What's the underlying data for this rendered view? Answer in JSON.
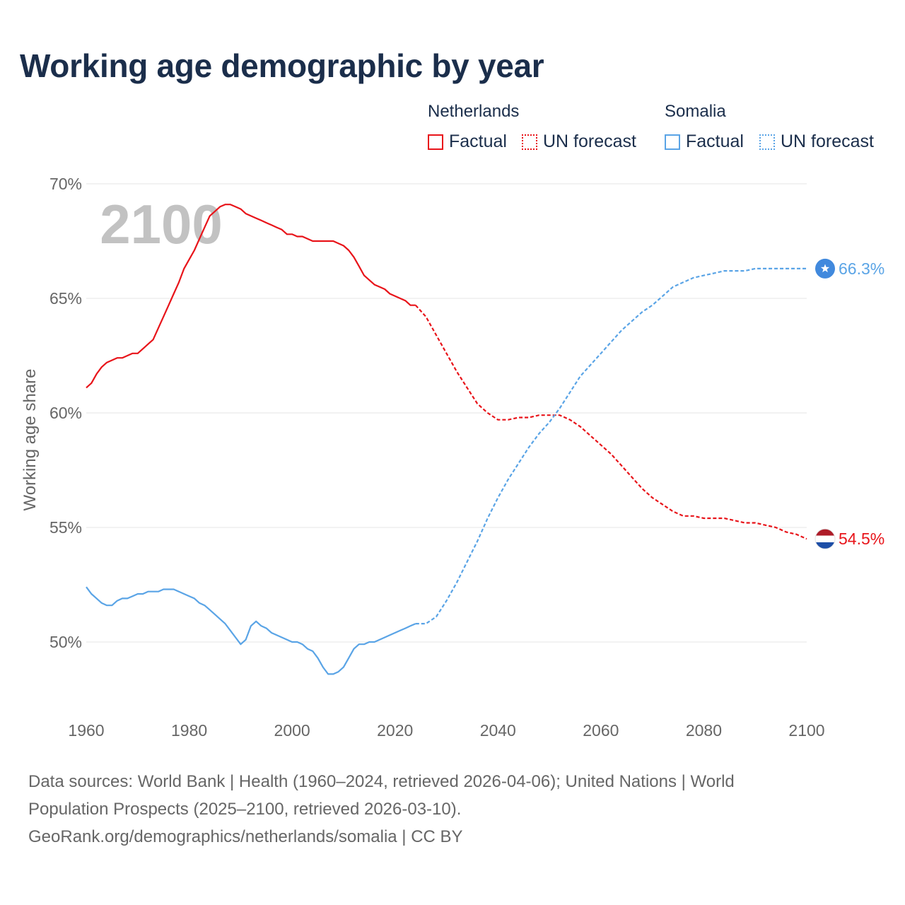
{
  "title": "Working age demographic by year",
  "legend": {
    "groups": [
      {
        "name": "Netherlands",
        "color": "#e8141a",
        "factual_label": "Factual",
        "forecast_label": "UN forecast"
      },
      {
        "name": "Somalia",
        "color": "#5aa4e6",
        "factual_label": "Factual",
        "forecast_label": "UN forecast"
      }
    ]
  },
  "year_watermark": "2100",
  "footer": {
    "line1": "Data sources: World Bank | Health (1960–2024, retrieved 2026-04-06); United Nations | World",
    "line2": "Population Prospects (2025–2100, retrieved 2026-03-10).",
    "line3": "GeoRank.org/demographics/netherlands/somalia | CC BY"
  },
  "chart_data": {
    "type": "line",
    "title": "Working age demographic by year",
    "xlabel": "",
    "ylabel": "Working age share",
    "xlim": [
      1960,
      2100
    ],
    "ylim": [
      47,
      71
    ],
    "x_ticks": [
      1960,
      1980,
      2000,
      2020,
      2040,
      2060,
      2080,
      2100
    ],
    "y_ticks": [
      50,
      55,
      60,
      65,
      70
    ],
    "y_tick_labels": [
      "50%",
      "55%",
      "60%",
      "65%",
      "70%"
    ],
    "grid": true,
    "legend_position": "top-right",
    "series": [
      {
        "name": "Netherlands",
        "color": "#e8141a",
        "end_label": "54.5%",
        "factual": {
          "x": [
            1960,
            1961,
            1962,
            1963,
            1964,
            1965,
            1966,
            1967,
            1968,
            1969,
            1970,
            1971,
            1972,
            1973,
            1974,
            1975,
            1976,
            1977,
            1978,
            1979,
            1980,
            1981,
            1982,
            1983,
            1984,
            1985,
            1986,
            1987,
            1988,
            1989,
            1990,
            1991,
            1992,
            1993,
            1994,
            1995,
            1996,
            1997,
            1998,
            1999,
            2000,
            2001,
            2002,
            2003,
            2004,
            2005,
            2006,
            2007,
            2008,
            2009,
            2010,
            2011,
            2012,
            2013,
            2014,
            2015,
            2016,
            2017,
            2018,
            2019,
            2020,
            2021,
            2022,
            2023,
            2024
          ],
          "y": [
            61.1,
            61.3,
            61.7,
            62.0,
            62.2,
            62.3,
            62.4,
            62.4,
            62.5,
            62.6,
            62.6,
            62.8,
            63.0,
            63.2,
            63.7,
            64.2,
            64.7,
            65.2,
            65.7,
            66.3,
            66.7,
            67.1,
            67.6,
            68.1,
            68.6,
            68.8,
            69.0,
            69.1,
            69.1,
            69.0,
            68.9,
            68.7,
            68.6,
            68.5,
            68.4,
            68.3,
            68.2,
            68.1,
            68.0,
            67.8,
            67.8,
            67.7,
            67.7,
            67.6,
            67.5,
            67.5,
            67.5,
            67.5,
            67.5,
            67.4,
            67.3,
            67.1,
            66.8,
            66.4,
            66.0,
            65.8,
            65.6,
            65.5,
            65.4,
            65.2,
            65.1,
            65.0,
            64.9,
            64.7,
            64.7
          ]
        },
        "forecast": {
          "x": [
            2024,
            2026,
            2028,
            2030,
            2032,
            2034,
            2036,
            2038,
            2040,
            2042,
            2044,
            2046,
            2048,
            2050,
            2052,
            2054,
            2056,
            2058,
            2060,
            2062,
            2064,
            2066,
            2068,
            2070,
            2072,
            2074,
            2076,
            2078,
            2080,
            2082,
            2084,
            2086,
            2088,
            2090,
            2092,
            2094,
            2096,
            2098,
            2100
          ],
          "y": [
            64.7,
            64.2,
            63.4,
            62.6,
            61.8,
            61.1,
            60.4,
            60.0,
            59.7,
            59.7,
            59.8,
            59.8,
            59.9,
            59.9,
            59.9,
            59.7,
            59.4,
            59.0,
            58.6,
            58.2,
            57.7,
            57.2,
            56.7,
            56.3,
            56.0,
            55.7,
            55.5,
            55.5,
            55.4,
            55.4,
            55.4,
            55.3,
            55.2,
            55.2,
            55.1,
            55.0,
            54.8,
            54.7,
            54.5
          ]
        }
      },
      {
        "name": "Somalia",
        "color": "#5aa4e6",
        "end_label": "66.3%",
        "factual": {
          "x": [
            1960,
            1961,
            1962,
            1963,
            1964,
            1965,
            1966,
            1967,
            1968,
            1969,
            1970,
            1971,
            1972,
            1973,
            1974,
            1975,
            1976,
            1977,
            1978,
            1979,
            1980,
            1981,
            1982,
            1983,
            1984,
            1985,
            1986,
            1987,
            1988,
            1989,
            1990,
            1991,
            1992,
            1993,
            1994,
            1995,
            1996,
            1997,
            1998,
            1999,
            2000,
            2001,
            2002,
            2003,
            2004,
            2005,
            2006,
            2007,
            2008,
            2009,
            2010,
            2011,
            2012,
            2013,
            2014,
            2015,
            2016,
            2017,
            2018,
            2019,
            2020,
            2021,
            2022,
            2023,
            2024
          ],
          "y": [
            52.4,
            52.1,
            51.9,
            51.7,
            51.6,
            51.6,
            51.8,
            51.9,
            51.9,
            52.0,
            52.1,
            52.1,
            52.2,
            52.2,
            52.2,
            52.3,
            52.3,
            52.3,
            52.2,
            52.1,
            52.0,
            51.9,
            51.7,
            51.6,
            51.4,
            51.2,
            51.0,
            50.8,
            50.5,
            50.2,
            49.9,
            50.1,
            50.7,
            50.9,
            50.7,
            50.6,
            50.4,
            50.3,
            50.2,
            50.1,
            50.0,
            50.0,
            49.9,
            49.7,
            49.6,
            49.3,
            48.9,
            48.6,
            48.6,
            48.7,
            48.9,
            49.3,
            49.7,
            49.9,
            49.9,
            50.0,
            50.0,
            50.1,
            50.2,
            50.3,
            50.4,
            50.5,
            50.6,
            50.7,
            50.8
          ]
        },
        "forecast": {
          "x": [
            2024,
            2026,
            2028,
            2030,
            2032,
            2034,
            2036,
            2038,
            2040,
            2042,
            2044,
            2046,
            2048,
            2050,
            2052,
            2054,
            2056,
            2058,
            2060,
            2062,
            2064,
            2066,
            2068,
            2070,
            2072,
            2074,
            2076,
            2078,
            2080,
            2082,
            2084,
            2086,
            2088,
            2090,
            2092,
            2094,
            2096,
            2098,
            2100
          ],
          "y": [
            50.8,
            50.8,
            51.1,
            51.8,
            52.6,
            53.5,
            54.4,
            55.4,
            56.3,
            57.1,
            57.8,
            58.5,
            59.1,
            59.6,
            60.2,
            60.9,
            61.6,
            62.1,
            62.6,
            63.1,
            63.6,
            64.0,
            64.4,
            64.7,
            65.1,
            65.5,
            65.7,
            65.9,
            66.0,
            66.1,
            66.2,
            66.2,
            66.2,
            66.3,
            66.3,
            66.3,
            66.3,
            66.3,
            66.3
          ]
        }
      }
    ]
  }
}
